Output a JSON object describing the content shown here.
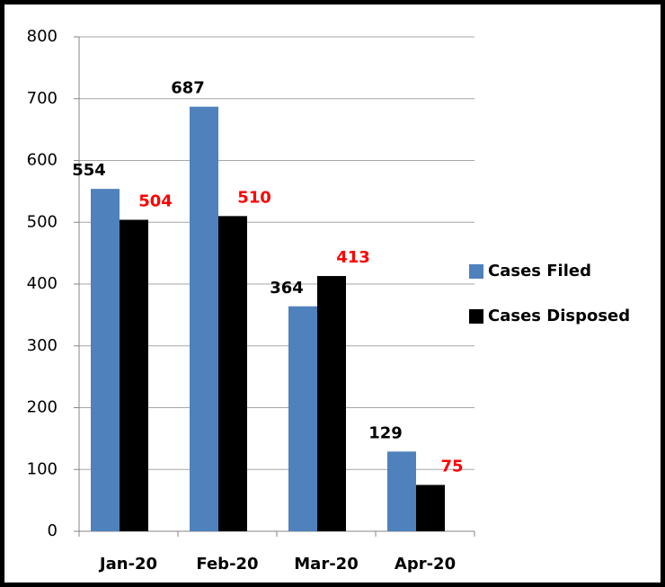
{
  "chart_data": {
    "type": "bar",
    "categories": [
      "Jan-20",
      "Feb-20",
      "Mar-20",
      "Apr-20"
    ],
    "series": [
      {
        "name": "Cases Filed",
        "color": "#4f81bd",
        "label_color": "#000000",
        "values": [
          554,
          687,
          364,
          129
        ]
      },
      {
        "name": "Cases Disposed",
        "color": "#000000",
        "label_color": "#ff0000",
        "values": [
          504,
          510,
          413,
          75
        ]
      }
    ],
    "ylim": [
      0,
      800
    ],
    "yticks": [
      0,
      100,
      200,
      300,
      400,
      500,
      600,
      700,
      800
    ],
    "grid": true,
    "legend": "right"
  }
}
